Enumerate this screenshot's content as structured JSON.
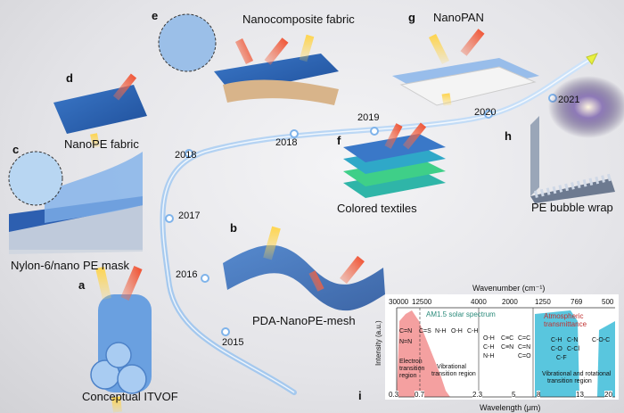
{
  "items": [
    {
      "panel": "a",
      "name": "Conceptual ITVOF",
      "year": "2015"
    },
    {
      "panel": "b",
      "name": "PDA-NanoPE-mesh",
      "year": "2016"
    },
    {
      "panel": "c",
      "name": "Nylon-6/nano PE mask",
      "year": "2017"
    },
    {
      "panel": "d",
      "name": "NanoPE fabric",
      "year": "2018"
    },
    {
      "panel": "e",
      "name": "Nanocomposite fabric",
      "year": "2018"
    },
    {
      "panel": "f",
      "name": "Colored textiles",
      "year": "2019"
    },
    {
      "panel": "g",
      "name": "NanoPAN",
      "year": "2020"
    },
    {
      "panel": "h",
      "name": "PE bubble wrap",
      "year": "2021"
    }
  ],
  "spectrum": {
    "panel": "i",
    "top_axis_label": "Wavenumber (cm⁻¹)",
    "top_ticks": [
      "30000",
      "12500",
      "4000",
      "2000",
      "1250",
      "769",
      "500"
    ],
    "bottom_axis_label": "Wavelength (μm)",
    "bottom_ticks": [
      "0.3",
      "0.7",
      "2.3",
      "5",
      "8",
      "13",
      "20"
    ],
    "y_axis_label": "Intensity (a.u.)",
    "am15_label": "AM1.5 solar spectrum",
    "atm_label_1": "Atmospheric",
    "atm_label_2": "transmittance",
    "electron_1": "Electron",
    "electron_2": "transition",
    "electron_3": "region",
    "vib_1": "Vibrational",
    "vib_2": "transition region",
    "vibrot_1": "Vibrational and rotational",
    "vibrot_2": "transition region",
    "bonds_electron": [
      "C=N",
      "C=S",
      "N=N"
    ],
    "bonds_vib": [
      "N-H",
      "O-H",
      "C-H"
    ],
    "bonds_mid_1": [
      "O-H",
      "C≡C",
      "C=C"
    ],
    "bonds_mid_2": [
      "C-H",
      "C≡N",
      "C=N"
    ],
    "bonds_mid_3": [
      "N-H",
      "",
      "C=O"
    ],
    "bonds_window_1": [
      "C-H",
      "C-N"
    ],
    "bonds_window_2": [
      "C-O",
      "C-Cl"
    ],
    "bonds_window_3": [
      "C-F"
    ],
    "bond_far": "C-O-C"
  }
}
